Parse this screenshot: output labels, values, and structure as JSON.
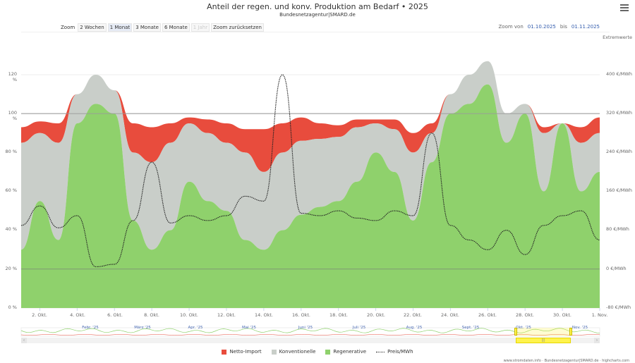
{
  "header": {
    "title": "Anteil der regen. und konv. Produktion am Bedarf  •  2025",
    "subtitle": "Bundesnetzagentur|SMARD.de",
    "menu_icon": "hamburger-menu-icon"
  },
  "zoom_controls": {
    "label": "Zoom",
    "buttons": [
      {
        "label": "2 Wochen",
        "state": "normal"
      },
      {
        "label": "1 Monat",
        "state": "active"
      },
      {
        "label": "3 Monate",
        "state": "normal"
      },
      {
        "label": "6 Monate",
        "state": "normal"
      },
      {
        "label": "1 Jahr",
        "state": "disabled"
      },
      {
        "label": "Zoom zurücksetzen",
        "state": "normal"
      }
    ]
  },
  "range": {
    "from_label": "Zoom von",
    "from": "01.10.2025",
    "to_label": "bis",
    "to": "01.11.2025"
  },
  "extremes_label": "Extremwerte",
  "colors": {
    "netto_import": "#e84c3d",
    "konventionelle": "#c9cec9",
    "regenerative": "#8fd16c",
    "price": "#222222",
    "navigator_selection": "#fff34d"
  },
  "chart_data": {
    "type": "area",
    "title": "Anteil der regen. und konv. Produktion am Bedarf • 2025",
    "subtitle": "Bundesnetzagentur|SMARD.de",
    "xlabel": "",
    "ylabel_left": "%",
    "ylabel_right": "€/MWh",
    "ylim_left": [
      0,
      130
    ],
    "ylim_right": [
      -80,
      440
    ],
    "grid": true,
    "legend_position": "bottom",
    "x_ticks": [
      "2. Okt.",
      "4. Okt.",
      "6. Okt.",
      "8. Okt.",
      "10. Okt.",
      "12. Okt.",
      "14. Okt.",
      "16. Okt.",
      "18. Okt.",
      "20. Okt.",
      "22. Okt.",
      "24. Okt.",
      "26. Okt.",
      "28. Okt.",
      "30. Okt.",
      "1. Nov."
    ],
    "y_ticks_left": [
      "0 %",
      "20 %",
      "40 %",
      "60 %",
      "80 %",
      "100 %",
      "120 %"
    ],
    "y_ticks_right": [
      "-80 €/MWh",
      "0 €/MWh",
      "80 €/MWh",
      "160 €/MWh",
      "240 €/MWh",
      "320 €/MWh",
      "400 €/MWh"
    ],
    "x": [
      "01.10",
      "02.10",
      "03.10",
      "04.10",
      "05.10",
      "06.10",
      "07.10",
      "08.10",
      "09.10",
      "10.10",
      "11.10",
      "12.10",
      "13.10",
      "14.10",
      "15.10",
      "16.10",
      "17.10",
      "18.10",
      "19.10",
      "20.10",
      "21.10",
      "22.10",
      "23.10",
      "24.10",
      "25.10",
      "26.10",
      "27.10",
      "28.10",
      "29.10",
      "30.10",
      "31.10",
      "01.11"
    ],
    "series": [
      {
        "name": "Regenerative",
        "unit": "%",
        "values": [
          30,
          55,
          35,
          95,
          105,
          100,
          45,
          30,
          40,
          65,
          55,
          50,
          35,
          30,
          40,
          48,
          52,
          55,
          65,
          80,
          70,
          45,
          75,
          100,
          105,
          115,
          85,
          100,
          60,
          95,
          60,
          70
        ]
      },
      {
        "name": "Konventionelle",
        "unit": "%",
        "values": [
          55,
          35,
          50,
          15,
          15,
          12,
          35,
          45,
          45,
          30,
          35,
          35,
          45,
          40,
          40,
          38,
          35,
          33,
          28,
          15,
          22,
          35,
          15,
          10,
          15,
          12,
          15,
          5,
          30,
          0,
          25,
          20
        ]
      },
      {
        "name": "Netto-Import",
        "unit": "%",
        "values": [
          8,
          6,
          10,
          0,
          0,
          0,
          15,
          18,
          10,
          3,
          7,
          10,
          12,
          22,
          15,
          12,
          8,
          6,
          4,
          2,
          5,
          10,
          5,
          0,
          0,
          0,
          0,
          0,
          3,
          0,
          8,
          8
        ]
      },
      {
        "name": "Preis/MWh",
        "unit": "€/MWh",
        "values": [
          90,
          130,
          85,
          110,
          5,
          10,
          100,
          220,
          95,
          110,
          100,
          110,
          150,
          140,
          400,
          115,
          110,
          120,
          105,
          100,
          120,
          110,
          280,
          90,
          60,
          40,
          80,
          30,
          90,
          110,
          120,
          60
        ]
      }
    ]
  },
  "navigator": {
    "months": [
      "Febr. '25",
      "März '25",
      "Apr. '25",
      "Mai '25",
      "Juni '25",
      "Juli '25",
      "Aug. '25",
      "Sept. '25",
      "Okt. '25",
      "Nov. '25"
    ],
    "scroll_left_icon": "arrow-left-icon",
    "scroll_right_icon": "arrow-right-icon",
    "scrollbar_grip": "|||"
  },
  "legend": [
    {
      "label": "Netto-Import",
      "type": "swatch",
      "color": "#e84c3d"
    },
    {
      "label": "Konventionelle",
      "type": "swatch",
      "color": "#c9cec9"
    },
    {
      "label": "Regenerative",
      "type": "swatch",
      "color": "#8fd16c"
    },
    {
      "label": "Preis/MWh",
      "type": "dash",
      "color": "#222222"
    }
  ],
  "credits": "www.stromdaten.info · Bundesnetzagentur|SMARD.de · highcharts.com"
}
